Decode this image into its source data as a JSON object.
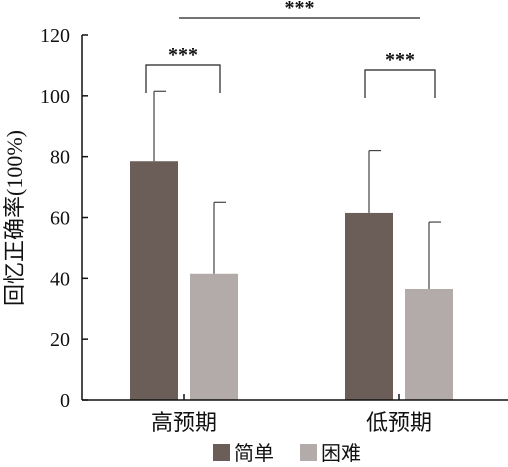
{
  "chart_data": {
    "type": "bar",
    "title": "",
    "xlabel": "",
    "ylabel": "回忆正确率(100%)",
    "categories": [
      "高预期",
      "低预期"
    ],
    "series": [
      {
        "name": "简单",
        "color": "#6b5e59",
        "values": [
          78.5,
          61.5
        ],
        "error": [
          23,
          20.5
        ]
      },
      {
        "name": "困难",
        "color": "#b3aba9",
        "values": [
          41.5,
          36.5
        ],
        "error": [
          23.5,
          22
        ]
      }
    ],
    "ylim": [
      0,
      120
    ],
    "yticks": [
      0,
      20,
      40,
      60,
      80,
      100,
      120
    ],
    "legend_position": "bottom",
    "grid": false,
    "significance": [
      {
        "label": "***",
        "between": "高预期: 简单 vs 困难"
      },
      {
        "label": "***",
        "between": "低预期: 简单 vs 困难"
      },
      {
        "label": "***",
        "between": "高预期 vs 低预期"
      }
    ]
  }
}
